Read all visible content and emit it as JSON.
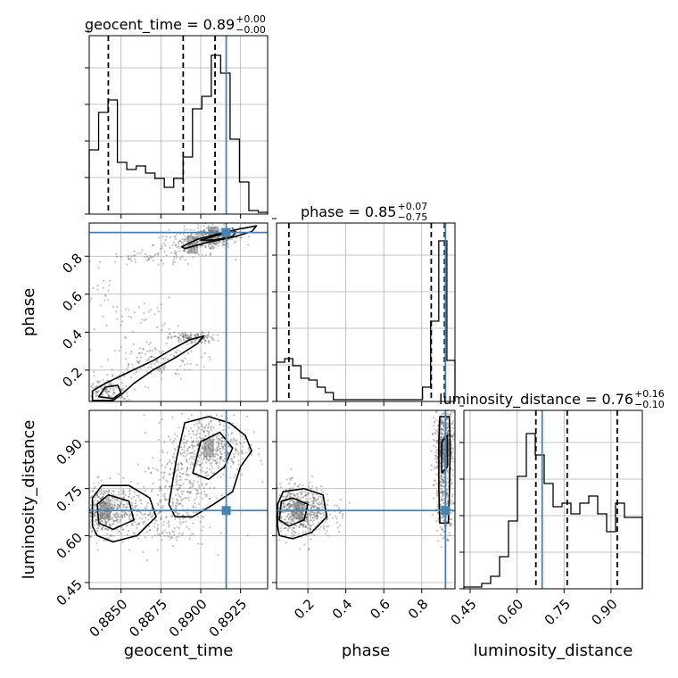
{
  "chart_data": {
    "type": "corner",
    "parameters": [
      "geocent_time",
      "phase",
      "luminosity_distance"
    ],
    "ranges": {
      "geocent_time": [
        0.883,
        0.8942
      ],
      "phase": [
        0.035,
        0.975
      ],
      "luminosity_distance": [
        0.43,
        1.0
      ]
    },
    "truths": {
      "geocent_time": 0.8916,
      "phase": 0.925,
      "luminosity_distance": 0.68
    },
    "ticks": {
      "geocent_time": [
        "0.8850",
        "0.8875",
        "0.8900",
        "0.8925"
      ],
      "phase": [
        "0.2",
        "0.4",
        "0.6",
        "0.8"
      ],
      "luminosity_distance": [
        "0.45",
        "0.60",
        "0.75",
        "0.90"
      ]
    },
    "titles": [
      {
        "param": "geocent_time",
        "text": "geocent_time = 0.89",
        "upper": "+0.00",
        "lower": "−0.00"
      },
      {
        "param": "phase",
        "text": "phase = 0.85",
        "upper": "+0.07",
        "lower": "−0.75"
      },
      {
        "param": "luminosity_distance",
        "text": "luminosity_distance = 0.76",
        "upper": "+0.16",
        "lower": "−0.10"
      }
    ],
    "quantiles": {
      "geocent_time": [
        0.8842,
        0.8889,
        0.8909
      ],
      "phase": [
        0.1,
        0.85,
        0.92
      ],
      "luminosity_distance": [
        0.66,
        0.76,
        0.92
      ]
    },
    "histograms": {
      "geocent_time": [
        0.36,
        0.57,
        0.64,
        0.29,
        0.25,
        0.27,
        0.23,
        0.2,
        0.15,
        0.2,
        0.32,
        0.59,
        0.66,
        0.89,
        0.79,
        0.42,
        0.18,
        0.02,
        0.01
      ],
      "phase": [
        0.22,
        0.24,
        0.2,
        0.13,
        0.12,
        0.08,
        0.05,
        0.01,
        0.01,
        0.01,
        0.01,
        0.01,
        0.01,
        0.01,
        0.01,
        0.01,
        0.01,
        0.01,
        0.08,
        0.45,
        0.9,
        0.23
      ],
      "luminosity_distance": [
        0.01,
        0.01,
        0.03,
        0.07,
        0.18,
        0.38,
        0.63,
        0.87,
        0.75,
        0.59,
        0.46,
        0.48,
        0.42,
        0.48,
        0.52,
        0.42,
        0.32,
        0.48,
        0.4,
        0.4
      ]
    },
    "grid": true,
    "legend": "none"
  }
}
